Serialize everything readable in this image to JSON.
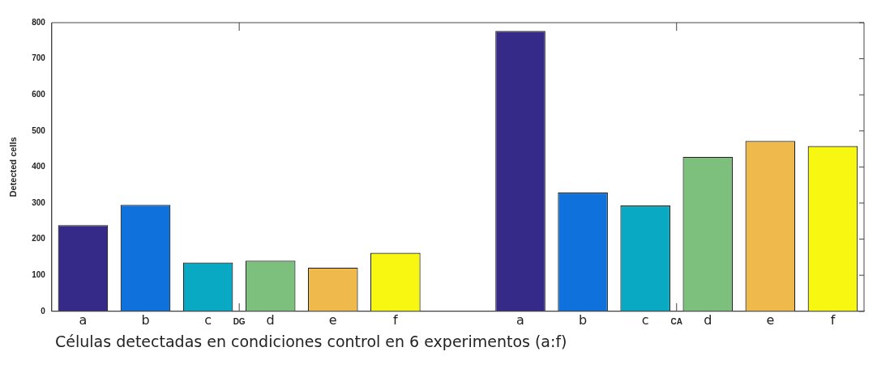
{
  "chart_data": {
    "type": "bar",
    "ylabel": "Detected cells",
    "categories": [
      "a",
      "b",
      "c",
      "d",
      "e",
      "f",
      null,
      "a",
      "b",
      "c",
      "d",
      "e",
      "f"
    ],
    "values": [
      239,
      295,
      135,
      140,
      121,
      162,
      null,
      777,
      329,
      293,
      428,
      472,
      458
    ],
    "colors": [
      "#352a87",
      "#0f72dc",
      "#09a8c3",
      "#7dc07d",
      "#f0b94b",
      "#f7f712",
      null,
      "#352a87",
      "#0f72dc",
      "#09a8c3",
      "#7dc07d",
      "#f0b94b",
      "#f7f712"
    ],
    "ylim": [
      0,
      800
    ],
    "yticks": [
      0,
      100,
      200,
      300,
      400,
      500,
      600,
      700,
      800
    ],
    "grid": false,
    "legend": false,
    "annotations": [
      "DG",
      "CA",
      "Células detectadas en condiciones control en 6 experimentos (a:f)"
    ]
  }
}
